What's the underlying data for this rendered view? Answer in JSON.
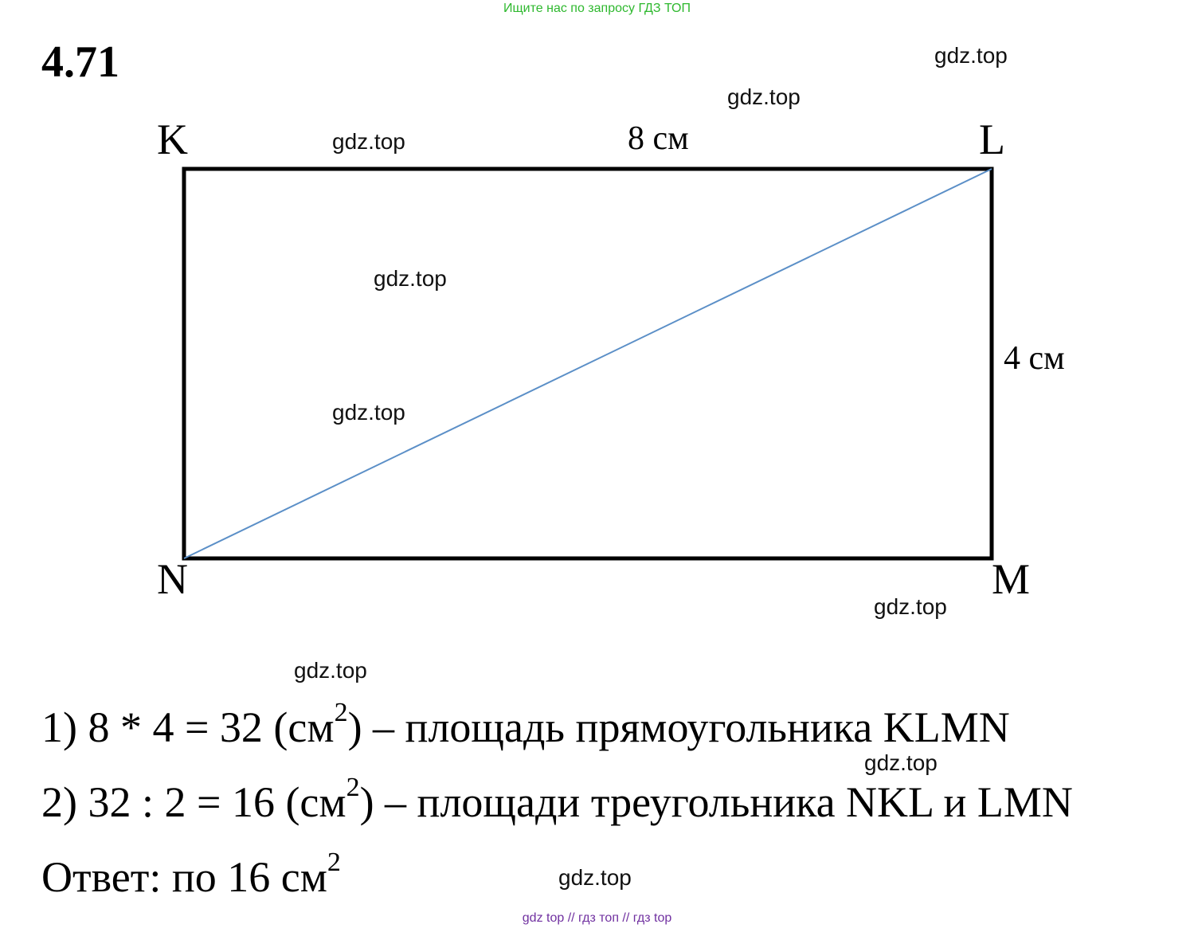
{
  "banner": "Ищите нас по запросу ГДЗ ТОП",
  "task_number": "4.71",
  "figure": {
    "vertices": {
      "K": "K",
      "L": "L",
      "M": "M",
      "N": "N"
    },
    "side_top": "8 см",
    "side_right": "4 см",
    "colors": {
      "frame": "#000000",
      "diagonal": "#5b8fc7"
    }
  },
  "watermark": "gdz.top",
  "solution": {
    "step1": {
      "prefix": "1) 8 * 4 = 32 (см",
      "sup": "2",
      "suffix": ") – площадь прямоугольника KLMN"
    },
    "step2": {
      "prefix": "2) 32 : 2 = 16 (см",
      "sup": "2",
      "suffix": ") – площади треугольника NKL и LMN"
    },
    "answer": {
      "prefix": "Ответ: по 16 см",
      "sup": "2"
    }
  },
  "footer": "gdz top  //  гдз топ  //  гдз top"
}
